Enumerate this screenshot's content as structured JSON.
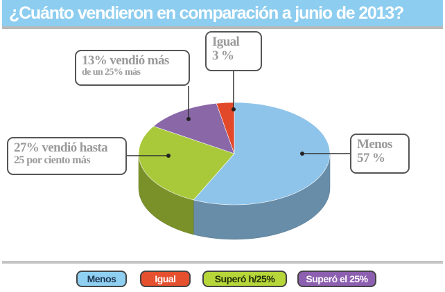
{
  "title": "¿Cuánto vendieron en comparación a junio de 2013?",
  "chart_data": {
    "type": "pie",
    "style": "3d",
    "title": "¿Cuánto vendieron en comparación a junio de 2013?",
    "slices": [
      {
        "name": "Menos",
        "value": 57,
        "color": "#8fc4ea"
      },
      {
        "name": "Superó h/25%",
        "value": 27,
        "color": "#a9c93b"
      },
      {
        "name": "Superó el 25%",
        "value": 13,
        "color": "#8a68a8"
      },
      {
        "name": "Igual",
        "value": 3,
        "color": "#e2492b"
      }
    ],
    "annotations": {
      "menos": {
        "line1": "Menos",
        "line2": "57 %"
      },
      "igual": {
        "line1": "Igual",
        "line2": "3 %"
      },
      "supero_el": {
        "line1": "13% vendió más",
        "line2": "de un 25% más"
      },
      "supero_h": {
        "line1": "27% vendió hasta",
        "line2": "25 por ciento más"
      }
    },
    "legend": {
      "placement": "bottom",
      "items": [
        {
          "label": "Menos",
          "color": "#8fd0f2",
          "text_color": "#1f3550"
        },
        {
          "label": "Igual",
          "color": "#e5502f",
          "text_color": "#ffffff"
        },
        {
          "label": "Superó h/25%",
          "color": "#b6d63a",
          "text_color": "#23300a"
        },
        {
          "label": "Superó el 25%",
          "color": "#8d5fb0",
          "text_color": "#ffffff"
        }
      ]
    }
  }
}
